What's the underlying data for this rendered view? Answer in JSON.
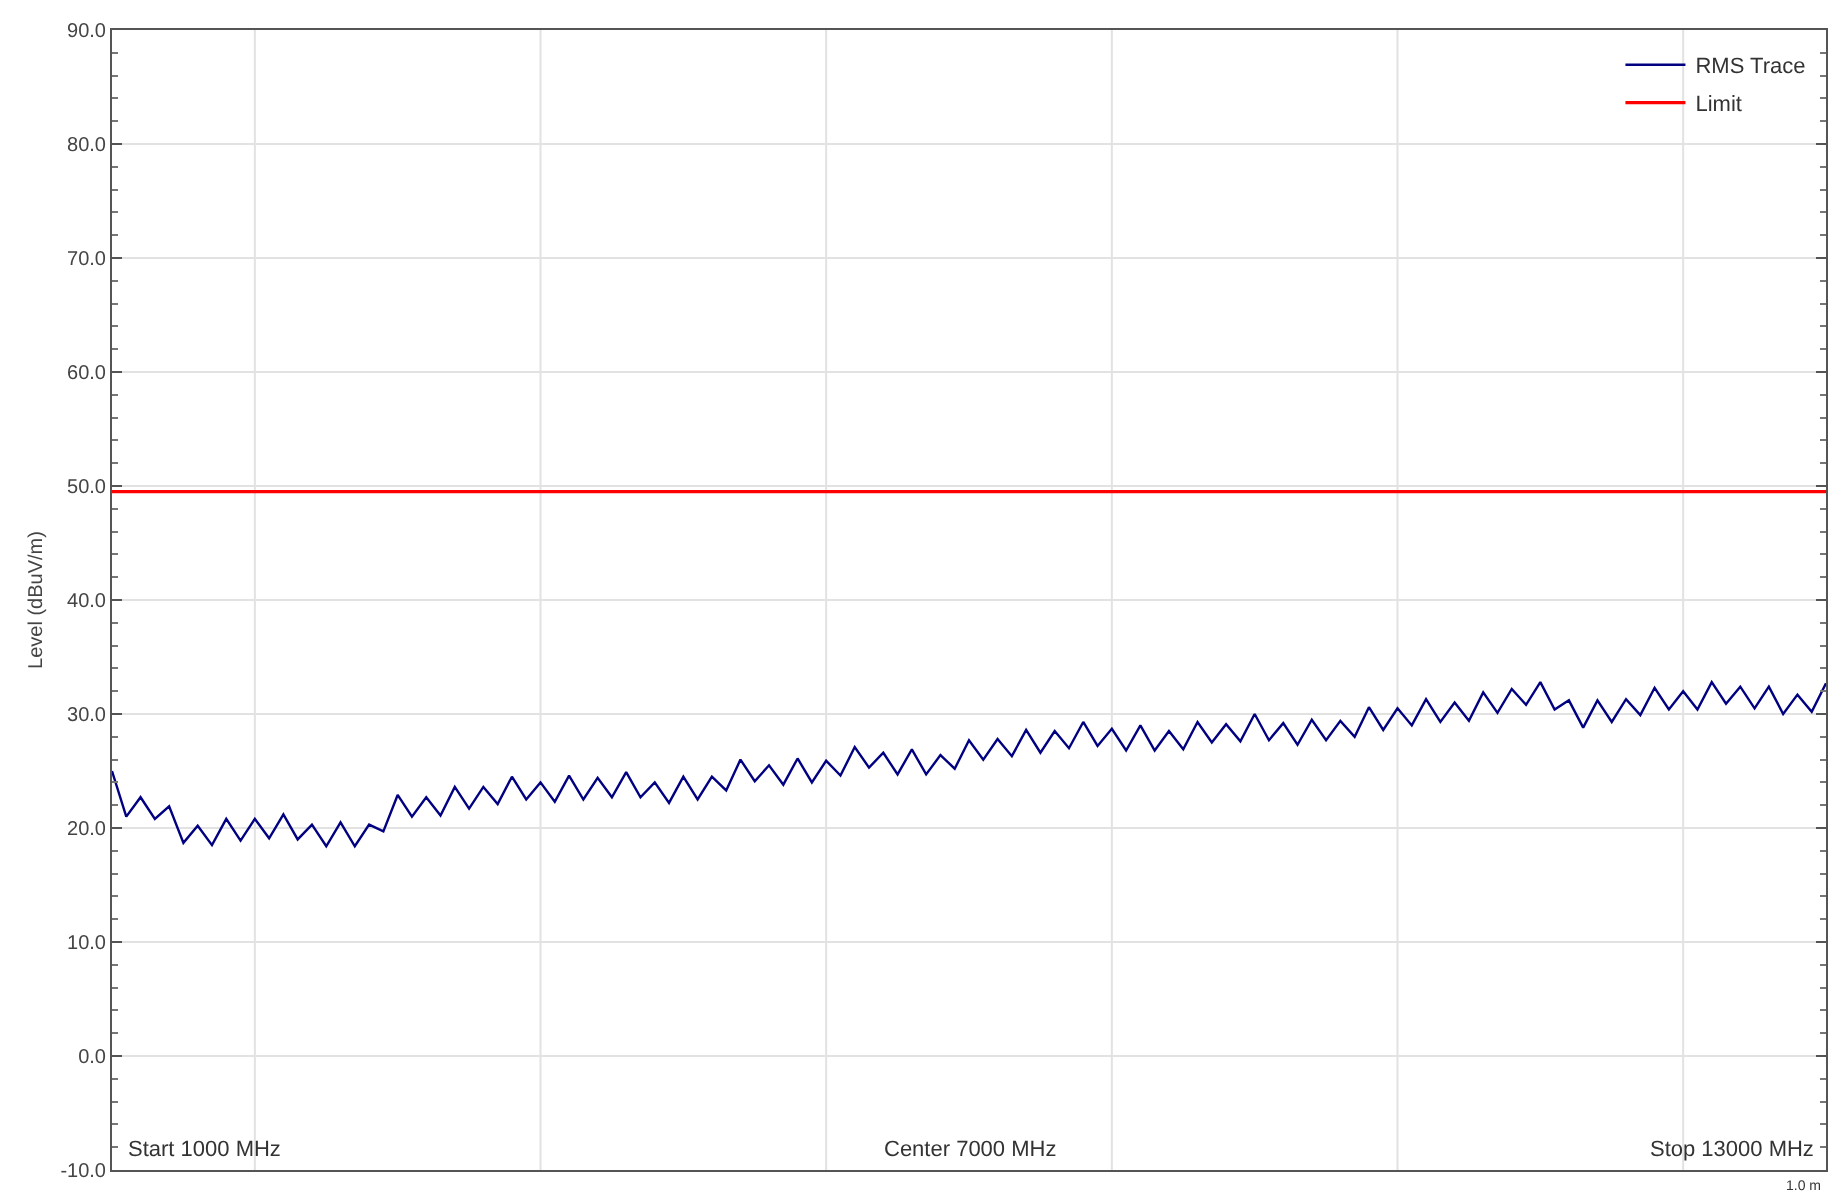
{
  "chart_data": {
    "type": "line",
    "ylabel": "Level (dBuV/m)",
    "categories": [
      null,
      null,
      null,
      null,
      null,
      null,
      null,
      null,
      null,
      null,
      null,
      null,
      null,
      null,
      null,
      null,
      null,
      null,
      null,
      null,
      null,
      null,
      null,
      null,
      null,
      null,
      null,
      null,
      null,
      null,
      null,
      null,
      null,
      null,
      null,
      null,
      null,
      null,
      null,
      null,
      null,
      null,
      null,
      null,
      null,
      null,
      null,
      null,
      null,
      null,
      null,
      null,
      null,
      null,
      null,
      null,
      null,
      null,
      null,
      null,
      null,
      null,
      null,
      null,
      null,
      null,
      null,
      null,
      null,
      null,
      null,
      null,
      null,
      null,
      null,
      null,
      null,
      null,
      null,
      null,
      null,
      null,
      null,
      null,
      null,
      null,
      null,
      null,
      null,
      null,
      null,
      null,
      null,
      null,
      null,
      null,
      null,
      null,
      null,
      null,
      null,
      null,
      null,
      null,
      null,
      null,
      null,
      null,
      null,
      null,
      null,
      null,
      null,
      null,
      null,
      null,
      null,
      null,
      null,
      null,
      null
    ],
    "ylim": [
      -10,
      90
    ],
    "yticks": [
      {
        "value": -10,
        "label": "-10.0"
      },
      {
        "value": 0,
        "label": "0.0"
      },
      {
        "value": 10,
        "label": "10.0"
      },
      {
        "value": 20,
        "label": "20.0"
      },
      {
        "value": 30,
        "label": "30.0"
      },
      {
        "value": 40,
        "label": "40.0"
      },
      {
        "value": 50,
        "label": "50.0"
      },
      {
        "value": 60,
        "label": "60.0"
      },
      {
        "value": 70,
        "label": "70.0"
      },
      {
        "value": 80,
        "label": "80.0"
      },
      {
        "value": 90,
        "label": "90.0"
      }
    ],
    "tick_labels": "y",
    "grid": true,
    "legend": "top right",
    "line_style": "solid",
    "annotations": [
      "Start 1000 MHz",
      "Center 7000 MHz",
      "Stop 13000 MHz",
      "1.0 m"
    ],
    "ref_lines": [
      {
        "axis": "y",
        "value": 49.5,
        "label": "Limit",
        "color": "#ff0000"
      }
    ],
    "series": [
      {
        "name": "RMS Trace",
        "color": "#000080",
        "values": [
          25.0,
          21.0,
          22.7,
          20.8,
          21.9,
          18.7,
          20.2,
          18.5,
          20.8,
          18.9,
          20.8,
          19.1,
          21.2,
          19.0,
          20.3,
          18.4,
          20.5,
          18.4,
          20.3,
          19.7,
          22.9,
          21.0,
          22.7,
          21.1,
          23.6,
          21.7,
          23.6,
          22.1,
          24.5,
          22.5,
          24.0,
          22.3,
          24.6,
          22.5,
          24.4,
          22.7,
          24.9,
          22.7,
          24.0,
          22.2,
          24.5,
          22.5,
          24.5,
          23.3,
          26.0,
          24.1,
          25.5,
          23.8,
          26.1,
          24.0,
          25.9,
          24.6,
          27.1,
          25.3,
          26.6,
          24.7,
          26.9,
          24.7,
          26.4,
          25.2,
          27.7,
          26.0,
          27.8,
          26.3,
          28.6,
          26.6,
          28.5,
          27.0,
          29.3,
          27.2,
          28.7,
          26.8,
          29.0,
          26.8,
          28.5,
          26.9,
          29.3,
          27.5,
          29.1,
          27.6,
          30.0,
          27.7,
          29.2,
          27.3,
          29.5,
          27.7,
          29.4,
          28.0,
          30.6,
          28.6,
          30.5,
          29.0,
          31.3,
          29.3,
          31.0,
          29.4,
          31.9,
          30.1,
          32.2,
          30.8,
          32.8,
          30.4,
          31.2,
          28.8,
          31.2,
          29.3,
          31.3,
          29.9,
          32.3,
          30.4,
          32.0,
          30.4,
          32.8,
          30.9,
          32.4,
          30.5,
          32.4,
          30.0,
          31.7,
          30.2,
          32.7
        ]
      }
    ]
  }
}
